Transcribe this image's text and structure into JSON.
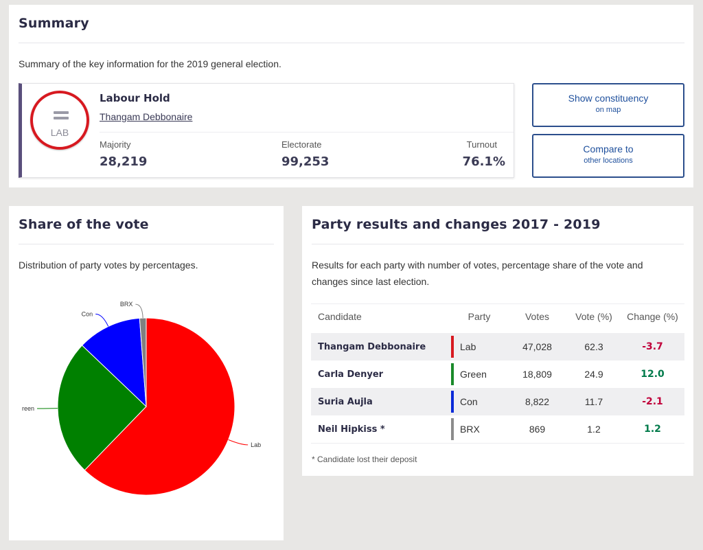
{
  "summary": {
    "title": "Summary",
    "description": "Summary of the key information for the 2019 general election.",
    "result": {
      "badge_label": "LAB",
      "badge_color": "#d71920",
      "accent_color": "#5a4f7c",
      "title": "Labour Hold",
      "candidate": "Thangam Debbonaire",
      "stats": [
        {
          "label": "Majority",
          "value": "28,219"
        },
        {
          "label": "Electorate",
          "value": "99,253"
        },
        {
          "label": "Turnout",
          "value": "76.1%"
        }
      ]
    },
    "buttons": [
      {
        "main": "Show constituency",
        "sub": "on map"
      },
      {
        "main": "Compare to",
        "sub": "other locations"
      }
    ]
  },
  "share": {
    "title": "Share of the vote",
    "description": "Distribution of party votes by percentages."
  },
  "chart_data": {
    "type": "pie",
    "title": "",
    "slices": [
      {
        "label": "Lab",
        "value": 62.3,
        "color": "#ff0000"
      },
      {
        "label": "Green",
        "value": 24.9,
        "color": "#008000"
      },
      {
        "label": "Con",
        "value": 11.7,
        "color": "#0000ff"
      },
      {
        "label": "BRX",
        "value": 1.2,
        "color": "#808080"
      }
    ],
    "visible_labels": [
      "Lab",
      "reen",
      "Con",
      "BRX"
    ]
  },
  "party": {
    "title": "Party results and changes 2017 - 2019",
    "description": "Results for each party with number of votes, percentage share of the vote and changes since last election.",
    "columns": [
      "Candidate",
      "Party",
      "Votes",
      "Vote (%)",
      "Change (%)"
    ],
    "rows": [
      {
        "candidate": "Thangam Debbonaire",
        "party": "Lab",
        "color": "#d71920",
        "votes": "47,028",
        "share": "62.3",
        "change": "-3.7",
        "change_color": "#c0003a"
      },
      {
        "candidate": "Carla Denyer",
        "party": "Green",
        "color": "#1a8a2a",
        "votes": "18,809",
        "share": "24.9",
        "change": "12.0",
        "change_color": "#007a4a"
      },
      {
        "candidate": "Suria Aujla",
        "party": "Con",
        "color": "#0a2ad8",
        "votes": "8,822",
        "share": "11.7",
        "change": "-2.1",
        "change_color": "#c0003a"
      },
      {
        "candidate": "Neil Hipkiss *",
        "party": "BRX",
        "color": "#8c8c8c",
        "votes": "869",
        "share": "1.2",
        "change": "1.2",
        "change_color": "#007a4a"
      }
    ],
    "footnote": "* Candidate lost their deposit"
  }
}
